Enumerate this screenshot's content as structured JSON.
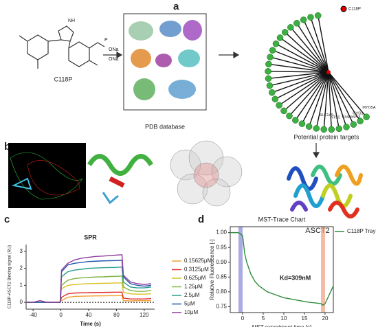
{
  "panels": {
    "a": {
      "label": "a",
      "compound": "C118P",
      "pdb": "PDB database",
      "targets": "Potential protein targets",
      "protein": "ASCT2",
      "legend": "C118P",
      "nodes": [
        "MYO5A",
        "GYG1",
        "Caspase-3",
        "NT5C",
        "SLC1A5"
      ]
    },
    "b": {
      "label": "b"
    },
    "c": {
      "label": "c"
    },
    "d": {
      "label": "d"
    }
  },
  "chart_data": [
    {
      "type": "line",
      "title": "SPR",
      "xlabel": "Time (s)",
      "ylabel": "C118P-ASCT2 Binding signal (RU)",
      "x": [
        -50,
        -40,
        -30,
        -20,
        -10,
        -1,
        1,
        10,
        20,
        30,
        40,
        50,
        60,
        70,
        80,
        88,
        90,
        100,
        110,
        120,
        130
      ],
      "xlim": [
        -50,
        135
      ],
      "xticks": [
        -40,
        0,
        40,
        80,
        120
      ],
      "ylim": [
        -0.4,
        3.4
      ],
      "yticks": [
        0,
        1,
        2,
        3
      ],
      "baseline": 0,
      "series": [
        {
          "name": "0.15625μM",
          "color": "#f0a030",
          "values": [
            0,
            0,
            0,
            0,
            0,
            0,
            0.1,
            0.3,
            0.35,
            0.36,
            0.37,
            0.38,
            0.38,
            0.39,
            0.39,
            0.4,
            0.1,
            0.08,
            0.1,
            0.1,
            0.1
          ]
        },
        {
          "name": "0.3125μM",
          "color": "#e03030",
          "values": [
            0,
            0,
            0,
            0,
            0,
            0,
            0.3,
            0.5,
            0.55,
            0.56,
            0.57,
            0.58,
            0.58,
            0.59,
            0.6,
            0.6,
            0.25,
            0.2,
            0.2,
            0.2,
            0.22
          ]
        },
        {
          "name": "0.625μM",
          "color": "#d8c020",
          "values": [
            0,
            0,
            0,
            0,
            0,
            0,
            0.8,
            1.0,
            1.05,
            1.08,
            1.1,
            1.11,
            1.12,
            1.13,
            1.14,
            1.15,
            0.6,
            0.5,
            0.48,
            0.48,
            0.5
          ]
        },
        {
          "name": "1.25μM",
          "color": "#7cb342",
          "values": [
            0,
            0,
            0,
            0,
            0,
            0,
            1.0,
            1.3,
            1.4,
            1.44,
            1.47,
            1.49,
            1.5,
            1.52,
            1.53,
            1.55,
            0.9,
            0.7,
            0.65,
            0.65,
            0.7
          ]
        },
        {
          "name": "2.5μM",
          "color": "#2a9d8f",
          "values": [
            0,
            0,
            0,
            0,
            0,
            0,
            1.5,
            1.8,
            1.9,
            1.95,
            2.0,
            2.02,
            2.04,
            2.05,
            2.06,
            2.08,
            1.2,
            0.9,
            0.85,
            0.85,
            0.9
          ]
        },
        {
          "name": "5μM",
          "color": "#2255aa",
          "values": [
            0,
            0,
            0,
            0,
            0,
            0,
            1.8,
            2.2,
            2.3,
            2.35,
            2.4,
            2.42,
            2.44,
            2.45,
            2.46,
            2.48,
            1.5,
            1.1,
            1.0,
            0.95,
            1.0
          ]
        },
        {
          "name": "10μM",
          "color": "#8e3a9c",
          "values": [
            0,
            0,
            0.1,
            0,
            0,
            0,
            1.9,
            2.3,
            2.5,
            2.6,
            2.65,
            2.7,
            2.72,
            2.75,
            2.78,
            2.8,
            1.6,
            1.2,
            1.1,
            1.05,
            1.1
          ]
        }
      ]
    },
    {
      "type": "line",
      "title": "MST-Trace Chart",
      "xlabel": "MST experiment time [s]",
      "ylabel": "Relative Fluorescence [-]",
      "annotation": "Kd=309nM",
      "x": [
        -3,
        -2,
        -1,
        0,
        0.5,
        1,
        2,
        3,
        4,
        5,
        6,
        8,
        10,
        12,
        14,
        16,
        18,
        19,
        19.5,
        20,
        21,
        22
      ],
      "xlim": [
        -3,
        22
      ],
      "xticks": [
        0,
        5,
        10,
        15,
        20
      ],
      "ylim": [
        0.73,
        1.02
      ],
      "yticks": [
        {
          "value": 0.75,
          "label": "0.75"
        },
        {
          "value": 0.8,
          "label": "0.80"
        },
        {
          "value": 0.85,
          "label": "0.85"
        },
        {
          "value": 0.9,
          "label": "0.90"
        },
        {
          "value": 0.95,
          "label": "0.95"
        },
        {
          "value": 1,
          "label": "1.00"
        }
      ],
      "highlights": [
        {
          "range": [
            -1,
            0
          ],
          "color": "#8888d8"
        },
        {
          "range": [
            19,
            20
          ],
          "color": "#f0a080"
        }
      ],
      "series": [
        {
          "name": "C118P Tray",
          "color": "#2e8b3a",
          "values": [
            1.0,
            1.0,
            1.0,
            0.99,
            0.93,
            0.9,
            0.86,
            0.835,
            0.82,
            0.81,
            0.8,
            0.79,
            0.78,
            0.775,
            0.77,
            0.765,
            0.762,
            0.76,
            0.755,
            0.76,
            0.79,
            0.82
          ]
        }
      ]
    }
  ]
}
